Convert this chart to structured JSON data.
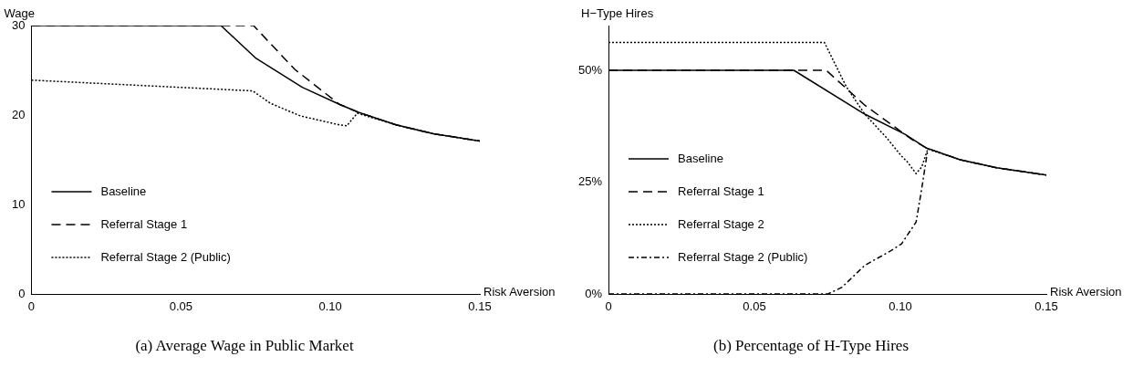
{
  "chart_data": [
    {
      "type": "line",
      "title": "(a) Average Wage in Public Market",
      "xlabel": "Risk Aversion",
      "ylabel": "Wage",
      "xlim": [
        0,
        0.15
      ],
      "xticks": [
        0,
        0.05,
        {
          "value": 0.1,
          "label": "0.10"
        },
        0.15
      ],
      "ylim": [
        0,
        30
      ],
      "yticks": [
        0,
        10,
        20,
        30
      ],
      "grid": false,
      "legend": "bottom left",
      "marker": "none",
      "series": [
        {
          "name": "Baseline",
          "color": "#000000",
          "line_style": "solid",
          "x": [
            0,
            0.0634,
            0.0749,
            0.0906,
            0.103,
            0.1094,
            0.122,
            0.1345,
            0.15
          ],
          "values": [
            30,
            30,
            26.4,
            23.1,
            21.2,
            20.3,
            18.9,
            17.9,
            17.1
          ]
        },
        {
          "name": "Referral Stage 1",
          "color": "#000000",
          "line_style": "dashed",
          "x": [
            0,
            0.0743,
            0.0881,
            0.103,
            0.1094,
            0.122,
            0.1345,
            0.15
          ],
          "values": [
            30,
            30,
            25.1,
            21.2,
            20.3,
            18.9,
            17.9,
            17.1
          ]
        },
        {
          "name": "Referral Stage 2 (Public)",
          "color": "#000000",
          "line_style": "dotted",
          "x": [
            0,
            0.074,
            0.08,
            0.09,
            0.103,
            0.1055,
            0.109,
            0.122,
            0.1345,
            0.15
          ],
          "values": [
            23.9,
            22.7,
            21.3,
            19.9,
            18.9,
            18.8,
            20.2,
            18.9,
            17.9,
            17.1
          ]
        }
      ]
    },
    {
      "type": "line",
      "title": "(b) Percentage of H-Type Hires",
      "xlabel": "Risk Aversion",
      "ylabel": "H−Type Hires",
      "xlim": [
        0,
        0.15
      ],
      "xticks": [
        0,
        0.05,
        {
          "value": 0.1,
          "label": "0.10"
        },
        0.15
      ],
      "ylim": [
        0,
        60
      ],
      "yticks": [
        {
          "value": 0,
          "label": "0%"
        },
        {
          "value": 25,
          "label": "25%"
        },
        {
          "value": 50,
          "label": "50%"
        }
      ],
      "grid": false,
      "legend": "bottom left",
      "marker": "none",
      "series": [
        {
          "name": "Baseline",
          "color": "#000000",
          "line_style": "solid",
          "x": [
            0,
            0.0635,
            0.0878,
            0.1016,
            0.109,
            0.1205,
            0.133,
            0.15
          ],
          "values": [
            50,
            50,
            40.2,
            35.7,
            32.6,
            30.0,
            28.2,
            26.6
          ]
        },
        {
          "name": "Referral Stage 1",
          "color": "#000000",
          "line_style": "dashed",
          "x": [
            0,
            0.0746,
            0.0878,
            0.104,
            0.109,
            0.1205,
            0.133,
            0.15
          ],
          "values": [
            50,
            50,
            42.2,
            34.5,
            32.6,
            30.0,
            28.2,
            26.6
          ]
        },
        {
          "name": "Referral Stage 2",
          "color": "#000000",
          "line_style": "dotted",
          "x": [
            0,
            0.074,
            0.0815,
            0.0878,
            0.0953,
            0.1004,
            0.1023,
            0.1054,
            0.1073,
            0.1094,
            0.1205,
            0.133,
            0.15
          ],
          "values": [
            56.2,
            56.2,
            46.3,
            40.2,
            34.9,
            30.8,
            29.6,
            26.9,
            28.4,
            32.4,
            30.0,
            28.2,
            26.6
          ]
        },
        {
          "name": "Referral Stage 2 (Public)",
          "color": "#000000",
          "line_style": "dashdot",
          "x": [
            0,
            0.0752,
            0.08,
            0.0878,
            0.0966,
            0.1004,
            0.1054,
            0.1073,
            0.1094
          ],
          "values": [
            0,
            0,
            1.5,
            6.4,
            9.6,
            11.2,
            16.1,
            23.5,
            32.4
          ]
        }
      ]
    }
  ]
}
